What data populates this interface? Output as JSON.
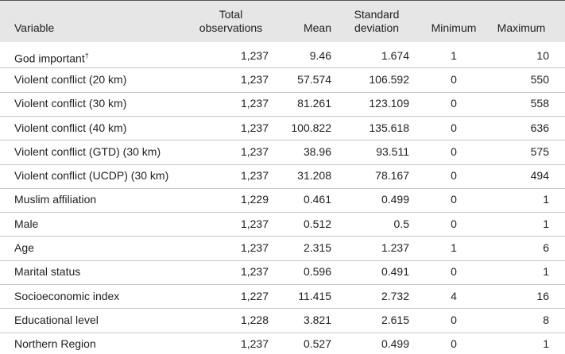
{
  "table": {
    "header": [
      "Variable",
      "Total observations",
      "Mean",
      "Standard deviation",
      "Minimum",
      "Maximum"
    ],
    "footnote_mark": "†",
    "rows": [
      [
        "God important",
        "1,237",
        "9.46",
        "1.674",
        "1",
        "10"
      ],
      [
        "Violent conflict (20 km)",
        "1,237",
        "57.574",
        "106.592",
        "0",
        "550"
      ],
      [
        "Violent conflict (30 km)",
        "1,237",
        "81.261",
        "123.109",
        "0",
        "558"
      ],
      [
        "Violent conflict (40 km)",
        "1,237",
        "100.822",
        "135.618",
        "0",
        "636"
      ],
      [
        "Violent conflict (GTD) (30 km)",
        "1,237",
        "38.96",
        "93.511",
        "0",
        "575"
      ],
      [
        "Violent conflict (UCDP) (30 km)",
        "1,237",
        "31.208",
        "78.167",
        "0",
        "494"
      ],
      [
        "Muslim affiliation",
        "1,229",
        "0.461",
        "0.499",
        "0",
        "1"
      ],
      [
        "Male",
        "1,237",
        "0.512",
        "0.5",
        "0",
        "1"
      ],
      [
        "Age",
        "1,237",
        "2.315",
        "1.237",
        "1",
        "6"
      ],
      [
        "Marital status",
        "1,237",
        "0.596",
        "0.491",
        "0",
        "1"
      ],
      [
        "Socioeconomic index",
        "1,227",
        "11.415",
        "2.732",
        "4",
        "16"
      ],
      [
        "Educational level",
        "1,228",
        "3.821",
        "2.615",
        "0",
        "8"
      ],
      [
        "Northern Region",
        "1,237",
        "0.527",
        "0.499",
        "0",
        "1"
      ]
    ]
  }
}
